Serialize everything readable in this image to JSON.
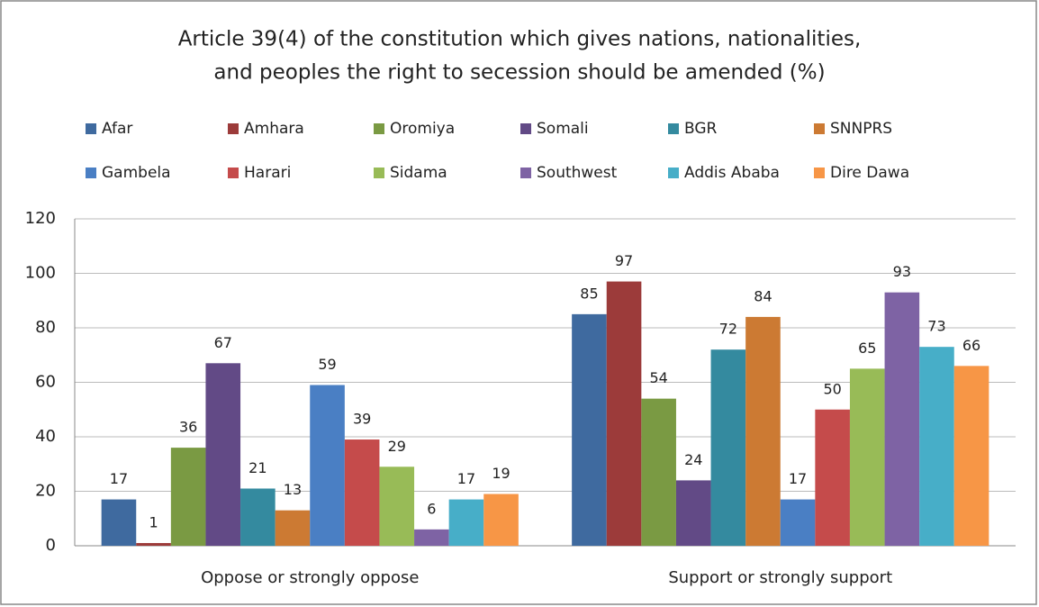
{
  "chart_data": {
    "type": "bar",
    "title": [
      "Article 39(4) of the constitution which gives nations, nationalities,",
      "and peoples the right to secession  should be amended (%)"
    ],
    "categories": [
      "Oppose or strongly oppose",
      "Support or strongly support"
    ],
    "series": [
      {
        "name": "Afar",
        "color": "#3f6a9f",
        "values": [
          17,
          85
        ]
      },
      {
        "name": "Amhara",
        "color": "#9c3b3a",
        "values": [
          1,
          97
        ]
      },
      {
        "name": "Oromiya",
        "color": "#7a9a43",
        "values": [
          36,
          54
        ]
      },
      {
        "name": "Somali",
        "color": "#624a86",
        "values": [
          67,
          24
        ]
      },
      {
        "name": "BGR",
        "color": "#348a9f",
        "values": [
          21,
          72
        ]
      },
      {
        "name": "SNNPRS",
        "color": "#cc7a33",
        "values": [
          13,
          84
        ]
      },
      {
        "name": "Gambela",
        "color": "#4a7fc4",
        "values": [
          59,
          17
        ]
      },
      {
        "name": "Harari",
        "color": "#c54b4b",
        "values": [
          39,
          50
        ]
      },
      {
        "name": "Sidama",
        "color": "#98bb57",
        "values": [
          29,
          65
        ]
      },
      {
        "name": "Southwest",
        "color": "#7e63a4",
        "values": [
          6,
          93
        ]
      },
      {
        "name": "Addis Ababa",
        "color": "#47aec8",
        "values": [
          17,
          73
        ]
      },
      {
        "name": "Dire Dawa",
        "color": "#f79646",
        "values": [
          19,
          66
        ]
      }
    ],
    "ylim": [
      0,
      120
    ],
    "yticks": [
      0,
      20,
      40,
      60,
      80,
      100,
      120
    ],
    "grid": true,
    "legend": "top"
  }
}
